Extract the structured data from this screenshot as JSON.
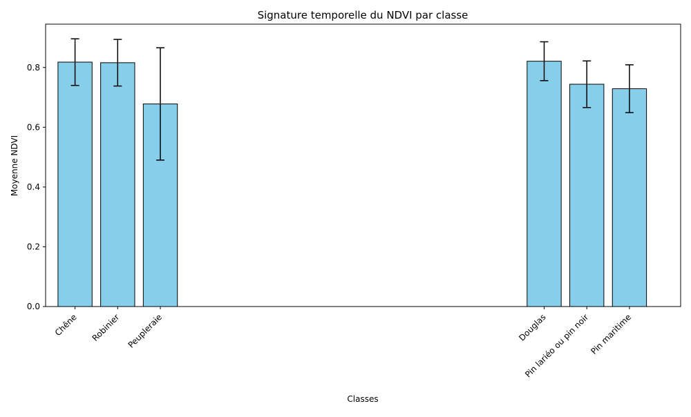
{
  "chart_data": {
    "type": "bar",
    "title": "Signature temporelle du NDVI par classe",
    "xlabel": "Classes",
    "ylabel": "Moyenne NDVI",
    "ylim": [
      0,
      0.945
    ],
    "yticks": [
      0.0,
      0.2,
      0.4,
      0.6,
      0.8
    ],
    "ytick_labels": [
      "0.0",
      "0.2",
      "0.4",
      "0.6",
      "0.8"
    ],
    "categories": [
      "Chêne",
      "Robinier",
      "Peupleraie",
      "Douglas",
      "Pin lariéo ou pin noir",
      "Pin maritime"
    ],
    "x_positions": [
      0,
      1,
      2,
      11,
      12,
      13
    ],
    "xlim": [
      -0.69,
      14.2
    ],
    "values": [
      0.818,
      0.816,
      0.678,
      0.821,
      0.744,
      0.729
    ],
    "error": [
      0.078,
      0.078,
      0.188,
      0.065,
      0.078,
      0.08
    ],
    "grid": false,
    "legend": "none",
    "bar_color": "#87CEEB",
    "edge_color": "#000000"
  }
}
